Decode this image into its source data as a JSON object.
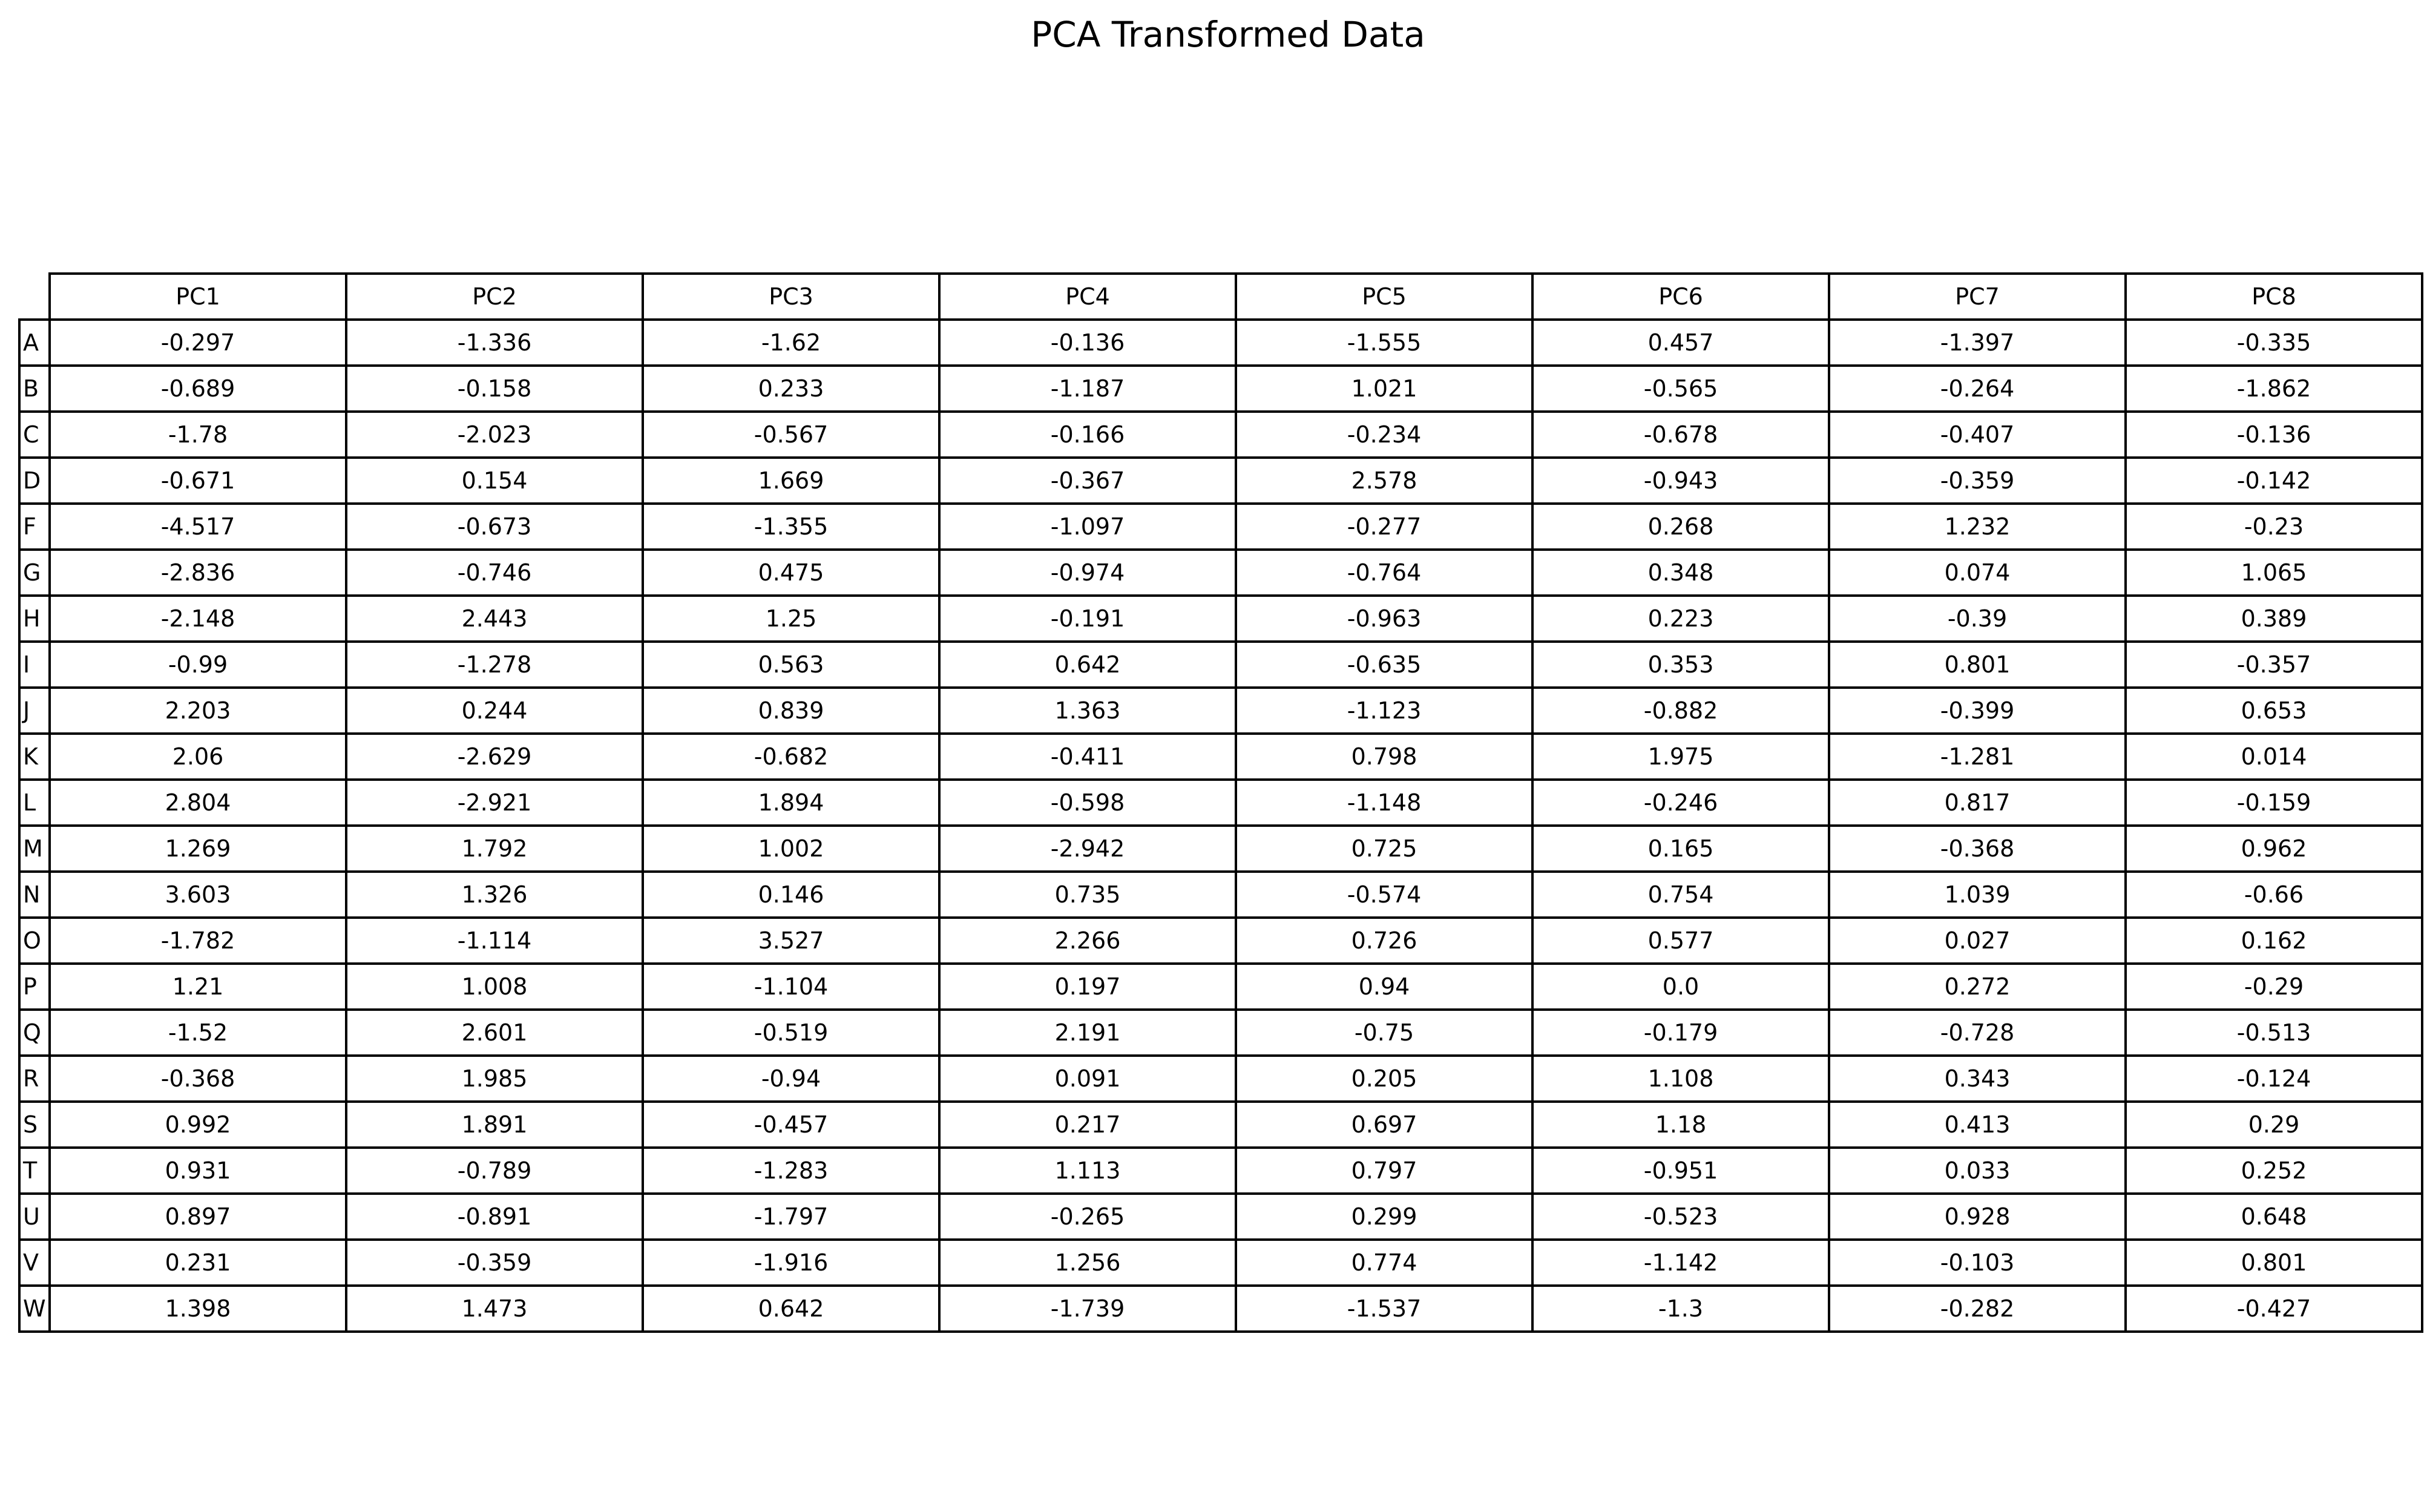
{
  "chart_data": {
    "type": "table",
    "title": "PCA Transformed Data",
    "columns": [
      "PC1",
      "PC2",
      "PC3",
      "PC4",
      "PC5",
      "PC6",
      "PC7",
      "PC8"
    ],
    "rows": [
      {
        "label": "A",
        "values": [
          "-0.297",
          "-1.336",
          "-1.62",
          "-0.136",
          "-1.555",
          "0.457",
          "-1.397",
          "-0.335"
        ]
      },
      {
        "label": "B",
        "values": [
          "-0.689",
          "-0.158",
          "0.233",
          "-1.187",
          "1.021",
          "-0.565",
          "-0.264",
          "-1.862"
        ]
      },
      {
        "label": "C",
        "values": [
          "-1.78",
          "-2.023",
          "-0.567",
          "-0.166",
          "-0.234",
          "-0.678",
          "-0.407",
          "-0.136"
        ]
      },
      {
        "label": "D",
        "values": [
          "-0.671",
          "0.154",
          "1.669",
          "-0.367",
          "2.578",
          "-0.943",
          "-0.359",
          "-0.142"
        ]
      },
      {
        "label": "F",
        "values": [
          "-4.517",
          "-0.673",
          "-1.355",
          "-1.097",
          "-0.277",
          "0.268",
          "1.232",
          "-0.23"
        ]
      },
      {
        "label": "G",
        "values": [
          "-2.836",
          "-0.746",
          "0.475",
          "-0.974",
          "-0.764",
          "0.348",
          "0.074",
          "1.065"
        ]
      },
      {
        "label": "H",
        "values": [
          "-2.148",
          "2.443",
          "1.25",
          "-0.191",
          "-0.963",
          "0.223",
          "-0.39",
          "0.389"
        ]
      },
      {
        "label": "I",
        "values": [
          "-0.99",
          "-1.278",
          "0.563",
          "0.642",
          "-0.635",
          "0.353",
          "0.801",
          "-0.357"
        ]
      },
      {
        "label": "J",
        "values": [
          "2.203",
          "0.244",
          "0.839",
          "1.363",
          "-1.123",
          "-0.882",
          "-0.399",
          "0.653"
        ]
      },
      {
        "label": "K",
        "values": [
          "2.06",
          "-2.629",
          "-0.682",
          "-0.411",
          "0.798",
          "1.975",
          "-1.281",
          "0.014"
        ]
      },
      {
        "label": "L",
        "values": [
          "2.804",
          "-2.921",
          "1.894",
          "-0.598",
          "-1.148",
          "-0.246",
          "0.817",
          "-0.159"
        ]
      },
      {
        "label": "M",
        "values": [
          "1.269",
          "1.792",
          "1.002",
          "-2.942",
          "0.725",
          "0.165",
          "-0.368",
          "0.962"
        ]
      },
      {
        "label": "N",
        "values": [
          "3.603",
          "1.326",
          "0.146",
          "0.735",
          "-0.574",
          "0.754",
          "1.039",
          "-0.66"
        ]
      },
      {
        "label": "O",
        "values": [
          "-1.782",
          "-1.114",
          "3.527",
          "2.266",
          "0.726",
          "0.577",
          "0.027",
          "0.162"
        ]
      },
      {
        "label": "P",
        "values": [
          "1.21",
          "1.008",
          "-1.104",
          "0.197",
          "0.94",
          "0.0",
          "0.272",
          "-0.29"
        ]
      },
      {
        "label": "Q",
        "values": [
          "-1.52",
          "2.601",
          "-0.519",
          "2.191",
          "-0.75",
          "-0.179",
          "-0.728",
          "-0.513"
        ]
      },
      {
        "label": "R",
        "values": [
          "-0.368",
          "1.985",
          "-0.94",
          "0.091",
          "0.205",
          "1.108",
          "0.343",
          "-0.124"
        ]
      },
      {
        "label": "S",
        "values": [
          "0.992",
          "1.891",
          "-0.457",
          "0.217",
          "0.697",
          "1.18",
          "0.413",
          "0.29"
        ]
      },
      {
        "label": "T",
        "values": [
          "0.931",
          "-0.789",
          "-1.283",
          "1.113",
          "0.797",
          "-0.951",
          "0.033",
          "0.252"
        ]
      },
      {
        "label": "U",
        "values": [
          "0.897",
          "-0.891",
          "-1.797",
          "-0.265",
          "0.299",
          "-0.523",
          "0.928",
          "0.648"
        ]
      },
      {
        "label": "V",
        "values": [
          "0.231",
          "-0.359",
          "-1.916",
          "1.256",
          "0.774",
          "-1.142",
          "-0.103",
          "0.801"
        ]
      },
      {
        "label": "W",
        "values": [
          "1.398",
          "1.473",
          "0.642",
          "-1.739",
          "-1.537",
          "-1.3",
          "-0.282",
          "-0.427"
        ]
      }
    ]
  }
}
